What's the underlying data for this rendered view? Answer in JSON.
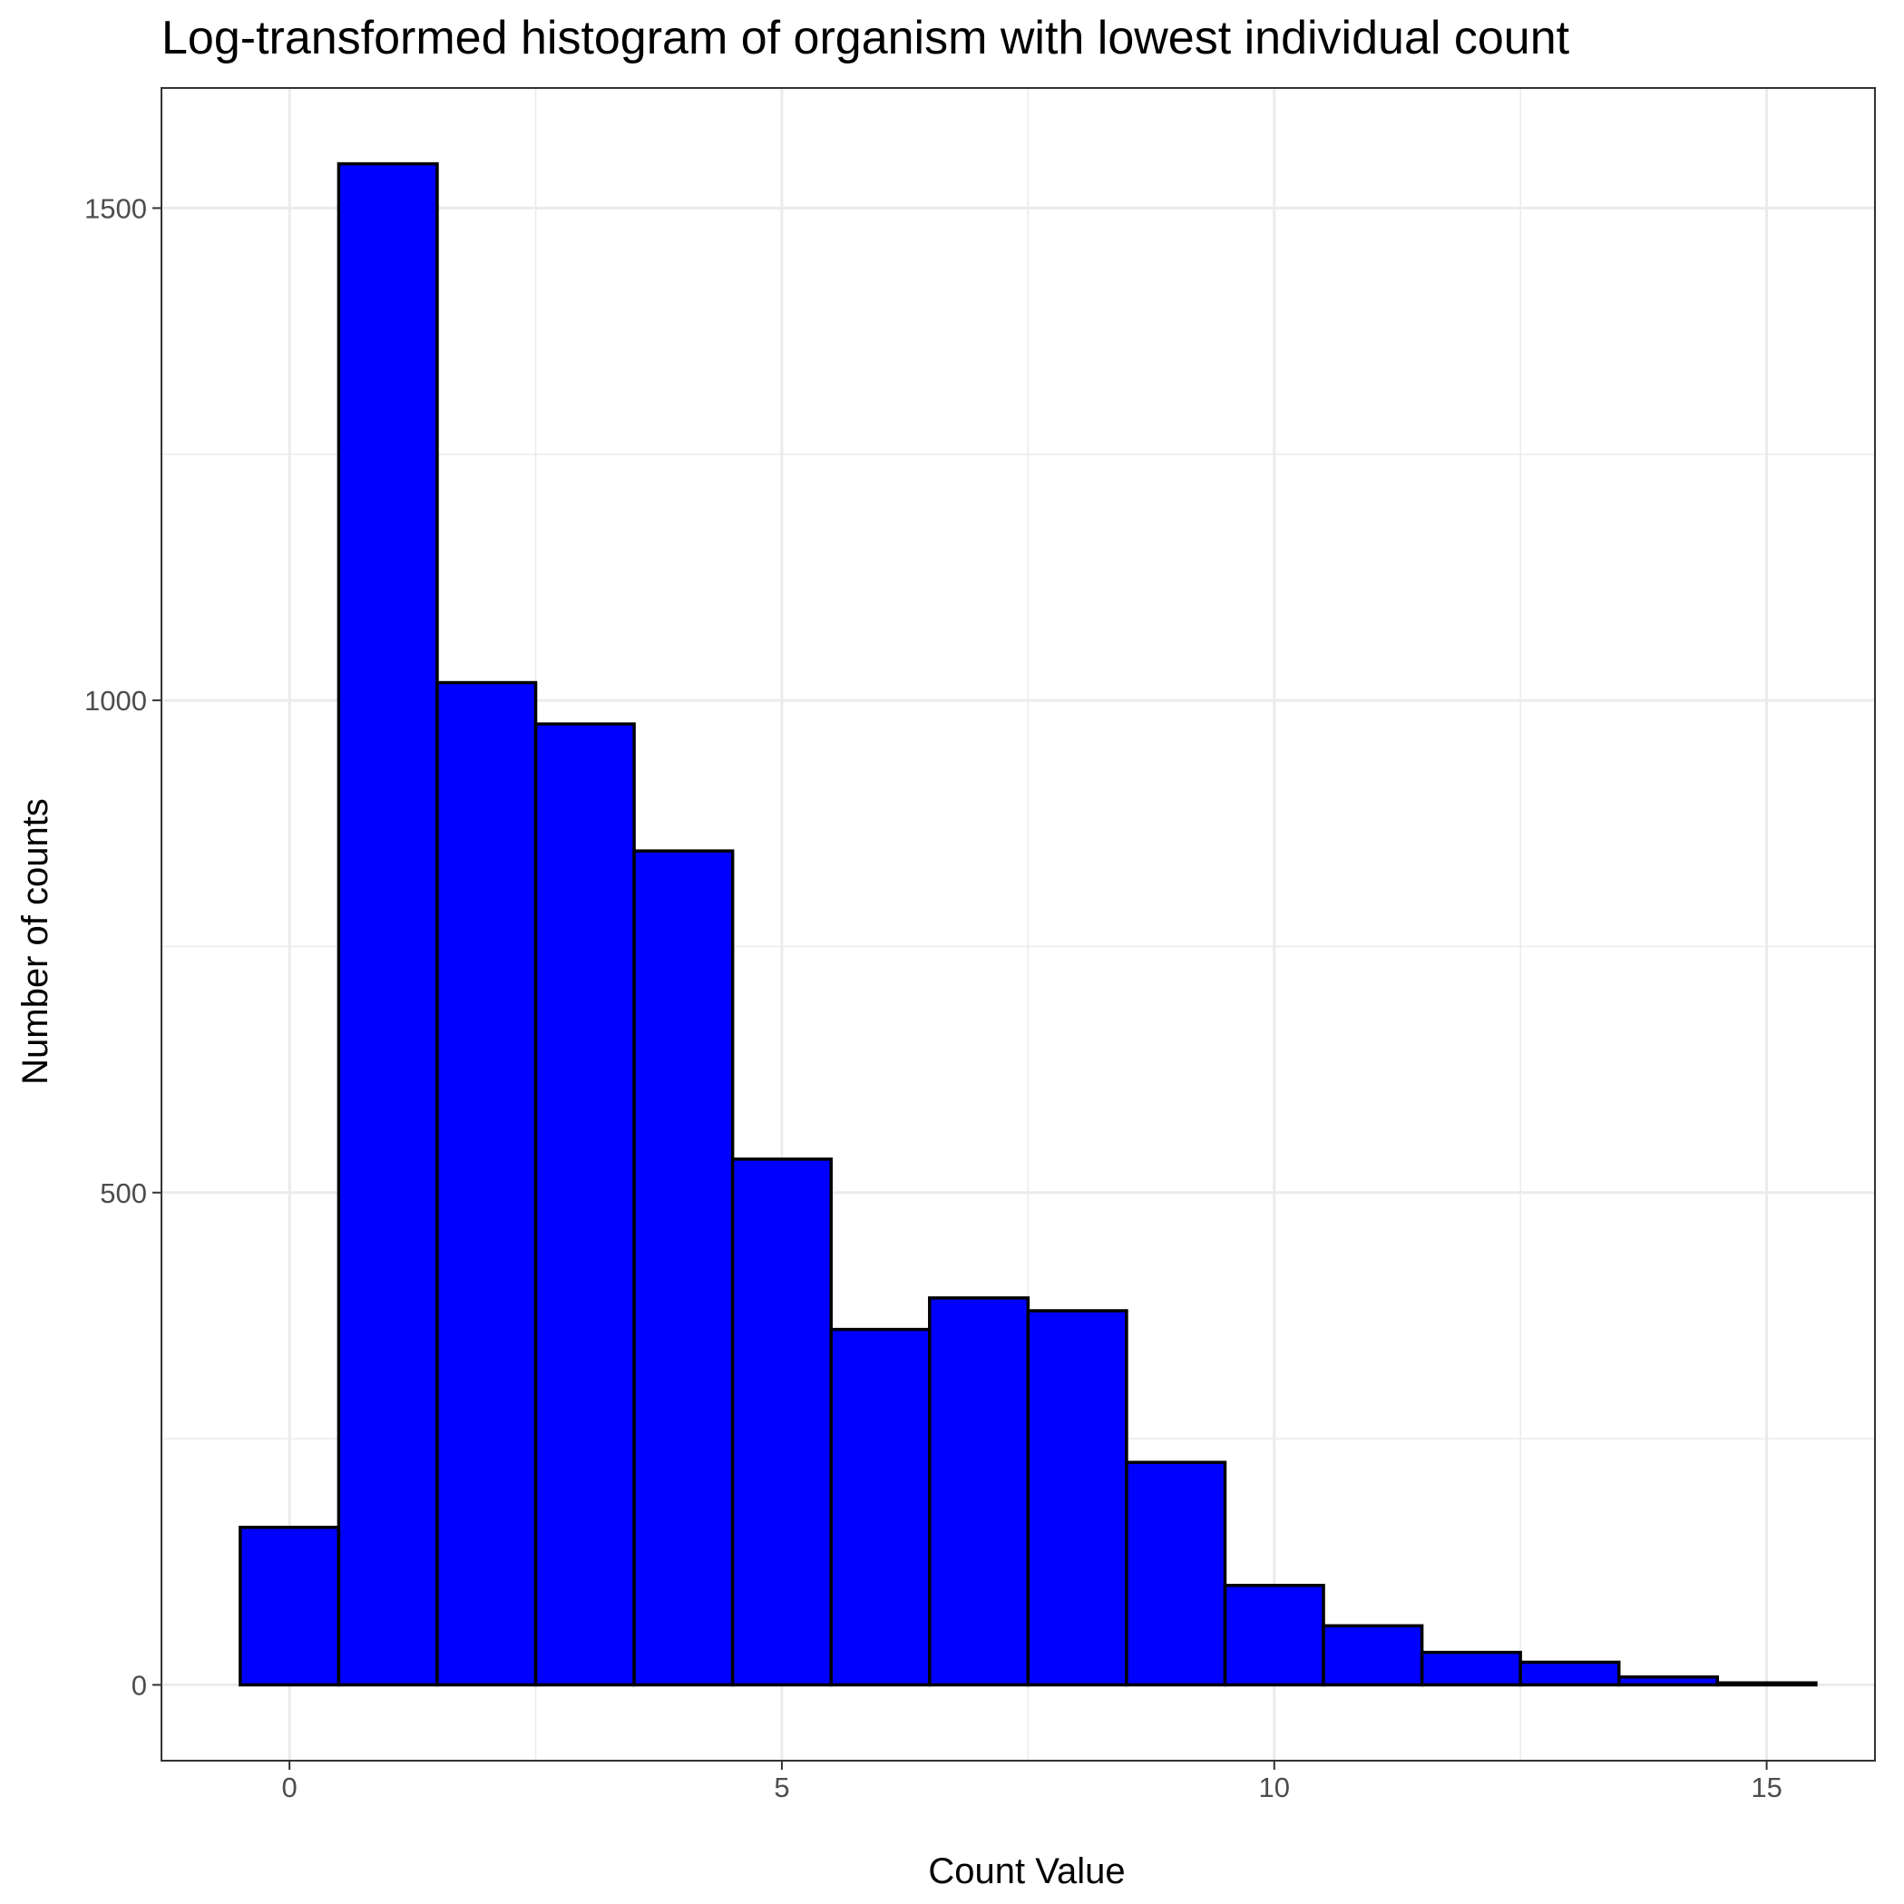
{
  "chart_data": {
    "type": "bar",
    "title": "Log-transformed histogram of organism with lowest individual count",
    "xlabel": "Count Value",
    "ylabel": "Number of counts",
    "bins": [
      {
        "center": 0,
        "count": 160
      },
      {
        "center": 1,
        "count": 1545
      },
      {
        "center": 2,
        "count": 1018
      },
      {
        "center": 3,
        "count": 976
      },
      {
        "center": 4,
        "count": 847
      },
      {
        "center": 5,
        "count": 534
      },
      {
        "center": 6,
        "count": 361
      },
      {
        "center": 7,
        "count": 393
      },
      {
        "center": 8,
        "count": 380
      },
      {
        "center": 9,
        "count": 226
      },
      {
        "center": 10,
        "count": 101
      },
      {
        "center": 11,
        "count": 60
      },
      {
        "center": 12,
        "count": 33
      },
      {
        "center": 13,
        "count": 23
      },
      {
        "center": 14,
        "count": 8
      },
      {
        "center": 15,
        "count": 2
      }
    ],
    "bin_width": 1,
    "xlim": [
      -1.3,
      16.1
    ],
    "ylim": [
      -77,
      1622
    ],
    "x_ticks": [
      0,
      5,
      10,
      15
    ],
    "y_ticks": [
      0,
      500,
      1000,
      1500
    ],
    "x_minor": [
      2.5,
      7.5,
      12.5
    ],
    "y_minor": [
      250,
      750,
      1250
    ],
    "grid": true,
    "legend": "none",
    "colors": {
      "fill": "#0000ff",
      "outline": "#000000",
      "grid": "#ebebeb",
      "panel_border": "#333333"
    }
  }
}
